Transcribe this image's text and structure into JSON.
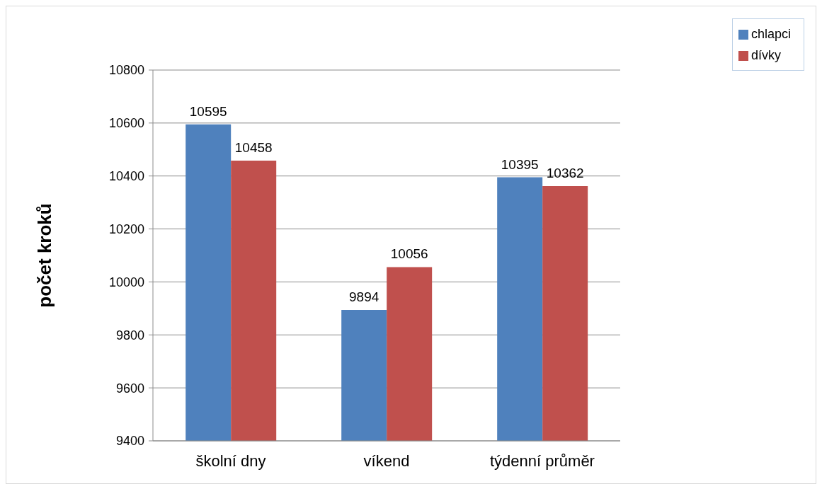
{
  "chart_data": {
    "type": "bar",
    "ylabel": "počet kroků",
    "categories": [
      "školní dny",
      "víkend",
      "týdenní průměr"
    ],
    "series": [
      {
        "name": "chlapci",
        "color": "#4f81bd",
        "values": [
          10595,
          9894,
          10395
        ]
      },
      {
        "name": "dívky",
        "color": "#c0504d",
        "values": [
          10458,
          10056,
          10362
        ]
      }
    ],
    "ylim": [
      9400,
      10800
    ],
    "yticks": [
      9400,
      9600,
      9800,
      10000,
      10200,
      10400,
      10600,
      10800
    ],
    "grid": "y",
    "legend": "top right",
    "data_labels": true
  }
}
